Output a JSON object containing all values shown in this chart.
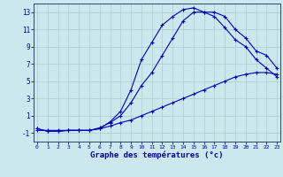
{
  "xlabel": "Graphe des températures (°c)",
  "background_color": "#cce8ee",
  "grid_color": "#aacccc",
  "line_color": "#0000bb",
  "xlim": [
    0,
    23
  ],
  "ylim": [
    -2,
    14
  ],
  "yticks": [
    -1,
    1,
    3,
    5,
    7,
    9,
    11,
    13
  ],
  "xticks": [
    0,
    1,
    2,
    3,
    4,
    5,
    6,
    7,
    8,
    9,
    10,
    11,
    12,
    13,
    14,
    15,
    16,
    17,
    18,
    19,
    20,
    21,
    22,
    23
  ],
  "hours": [
    0,
    1,
    2,
    3,
    4,
    5,
    6,
    7,
    8,
    9,
    10,
    11,
    12,
    13,
    14,
    15,
    16,
    17,
    18,
    19,
    20,
    21,
    22,
    23
  ],
  "line1": [
    -0.5,
    -0.8,
    -0.8,
    -0.7,
    -0.7,
    -0.7,
    -0.5,
    0.3,
    1.5,
    4.0,
    7.5,
    9.5,
    11.5,
    12.5,
    13.3,
    13.5,
    13.0,
    12.5,
    11.2,
    9.8,
    9.0,
    7.5,
    6.5,
    5.5
  ],
  "line2": [
    -0.5,
    -0.8,
    -0.8,
    -0.7,
    -0.7,
    -0.7,
    -0.4,
    0.2,
    1.0,
    2.5,
    4.5,
    6.0,
    8.0,
    10.0,
    12.0,
    13.0,
    13.0,
    13.0,
    12.5,
    11.0,
    10.0,
    8.5,
    8.0,
    6.5
  ],
  "line3": [
    -0.7,
    -0.7,
    -0.7,
    -0.7,
    -0.7,
    -0.7,
    -0.5,
    -0.2,
    0.2,
    0.5,
    1.0,
    1.5,
    2.0,
    2.5,
    3.0,
    3.5,
    4.0,
    4.5,
    5.0,
    5.5,
    5.8,
    6.0,
    6.0,
    5.8
  ]
}
